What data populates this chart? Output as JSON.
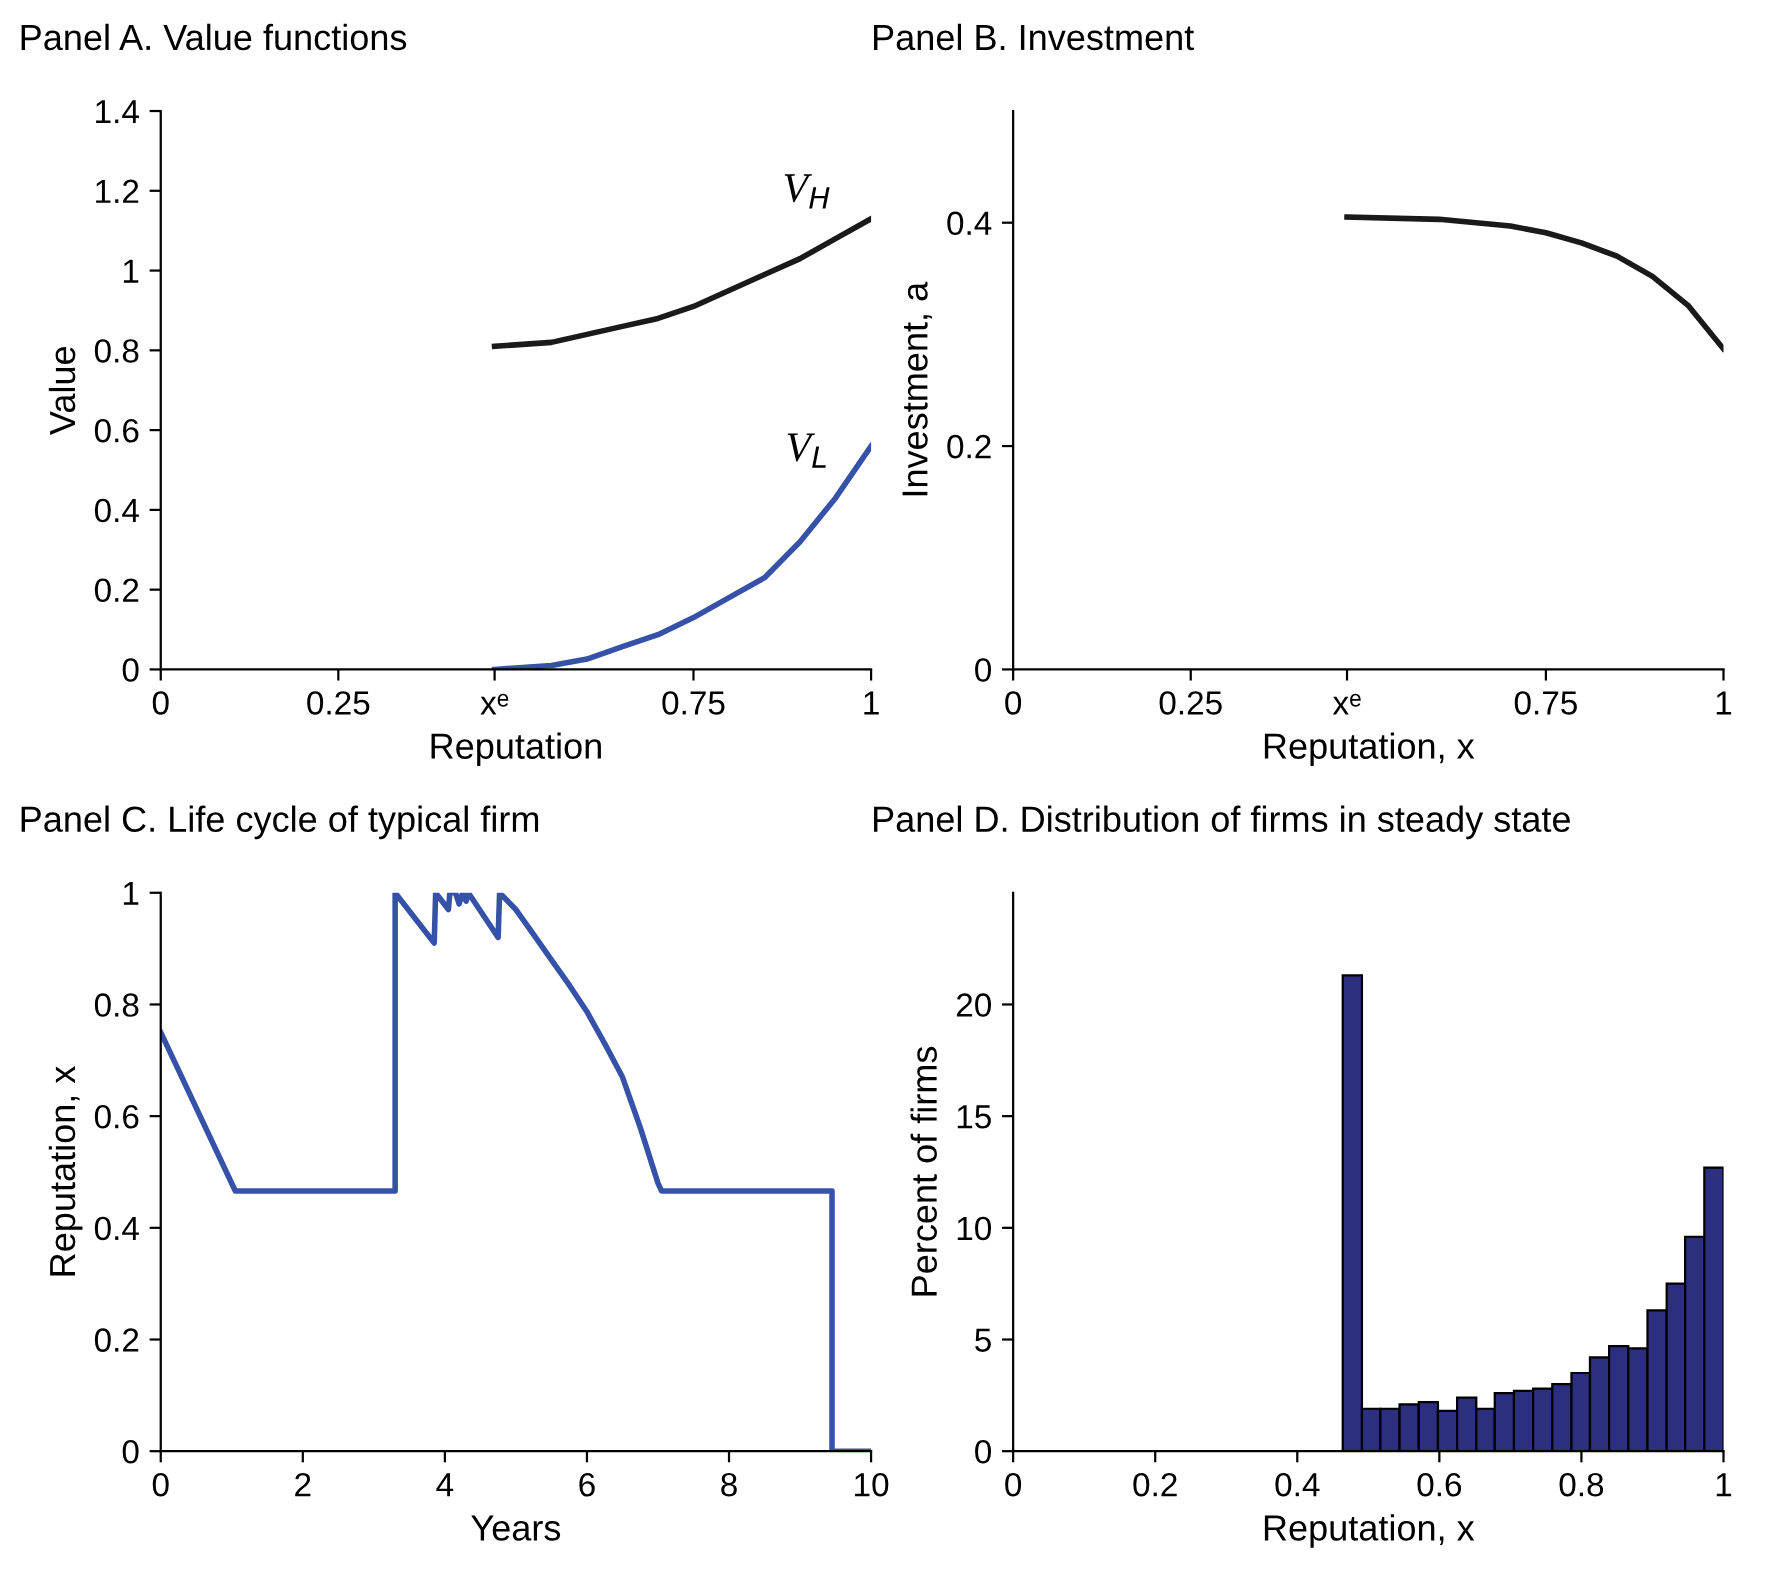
{
  "chart_data": [
    {
      "type": "line",
      "title": "Panel A. Value functions",
      "xlabel": "Reputation",
      "ylabel": "Value",
      "xlim": [
        0,
        1
      ],
      "ylim": [
        0,
        1.4
      ],
      "xticks": [
        0,
        0.25,
        {
          "value": 0.47,
          "label": "xᵉ"
        },
        0.75,
        1
      ],
      "yticks": [
        0,
        0.2,
        0.4,
        0.6,
        0.8,
        1,
        1.2,
        1.4
      ],
      "grid": false,
      "legend": false,
      "series": [
        {
          "name": "V$_{H}$",
          "color": "#1a1a1a",
          "x": [
            0.47,
            0.55,
            0.6,
            0.65,
            0.7,
            0.75,
            0.8,
            0.85,
            0.9,
            0.95,
            1
          ],
          "values": [
            0.81,
            0.82,
            0.84,
            0.86,
            0.88,
            0.91,
            0.95,
            0.99,
            1.03,
            1.08,
            1.13
          ]
        },
        {
          "name": "V$_{L}$",
          "color": "#3552a8",
          "x": [
            0.47,
            0.55,
            0.6,
            0.65,
            0.7,
            0.75,
            0.8,
            0.85,
            0.9,
            0.95,
            1
          ],
          "values": [
            0,
            0.01,
            0.026,
            0.057,
            0.087,
            0.13,
            0.18,
            0.23,
            0.32,
            0.43,
            0.56
          ]
        }
      ]
    },
    {
      "type": "line",
      "title": "Panel B. Investment",
      "xlabel": "Reputation, x",
      "ylabel": "Investment, a",
      "xlim": [
        0,
        1
      ],
      "ylim": [
        0,
        0.5
      ],
      "xticks": [
        0,
        0.25,
        {
          "value": 0.47,
          "label": "xᵉ"
        },
        0.75,
        1
      ],
      "yticks": [
        0,
        0.2,
        0.4
      ],
      "grid": false,
      "legend": false,
      "series": [
        {
          "color": "#1a1a1a",
          "x": [
            0.47,
            0.6,
            0.7,
            0.75,
            0.8,
            0.85,
            0.9,
            0.95,
            1
          ],
          "values": [
            0.405,
            0.403,
            0.397,
            0.391,
            0.382,
            0.37,
            0.352,
            0.326,
            0.287
          ]
        }
      ]
    },
    {
      "type": "line",
      "title": "Panel C. Life cycle of typical firm",
      "xlabel": "Years",
      "ylabel": "Reputation, x",
      "xlim": [
        0,
        10
      ],
      "ylim": [
        0,
        1
      ],
      "xticks": [
        0,
        2,
        4,
        6,
        8,
        10
      ],
      "yticks": [
        0,
        0.2,
        0.4,
        0.6,
        0.8,
        1
      ],
      "grid": false,
      "legend": false,
      "series": [
        {
          "color": "#3552a8",
          "x": [
            0,
            1.05,
            3.3,
            3.3,
            3.85,
            3.87,
            4.05,
            4.07,
            4.15,
            4.2,
            4.25,
            4.3,
            4.33,
            4.75,
            4.77,
            5,
            5.25,
            5.5,
            5.75,
            6,
            6.25,
            6.5,
            6.75,
            7,
            7.05,
            9.45,
            9.45,
            10
          ],
          "values": [
            0.75,
            0.466,
            0.466,
            1,
            0.91,
            1,
            0.97,
            1,
            1,
            0.98,
            1,
            0.985,
            1,
            0.92,
            1,
            0.97,
            0.925,
            0.88,
            0.835,
            0.787,
            0.73,
            0.67,
            0.58,
            0.48,
            0.466,
            0.466,
            0,
            0
          ]
        }
      ]
    },
    {
      "type": "histogram",
      "title": "Panel D. Distribution of firms in steady state",
      "xlabel": "Reputation, x",
      "ylabel": "Percent of firms",
      "xlim": [
        0,
        1
      ],
      "ylim": [
        0,
        25
      ],
      "xticks": [
        0,
        0.2,
        0.4,
        0.6,
        0.8,
        1
      ],
      "yticks": [
        0,
        5,
        10,
        15,
        20
      ],
      "grid": false,
      "legend": false,
      "color": "#2b2f7e",
      "bins": [
        0.464,
        0.491,
        0.517,
        0.544,
        0.571,
        0.598,
        0.625,
        0.652,
        0.678,
        0.705,
        0.732,
        0.759,
        0.786,
        0.812,
        0.839,
        0.866,
        0.893,
        0.92,
        0.946,
        0.973,
        1
      ],
      "values": [
        21.3,
        1.9,
        1.9,
        2.1,
        2.2,
        1.8,
        2.4,
        1.9,
        2.6,
        2.7,
        2.8,
        3.0,
        3.5,
        4.2,
        4.7,
        4.6,
        6.3,
        7.5,
        9.6,
        12.7
      ]
    }
  ]
}
